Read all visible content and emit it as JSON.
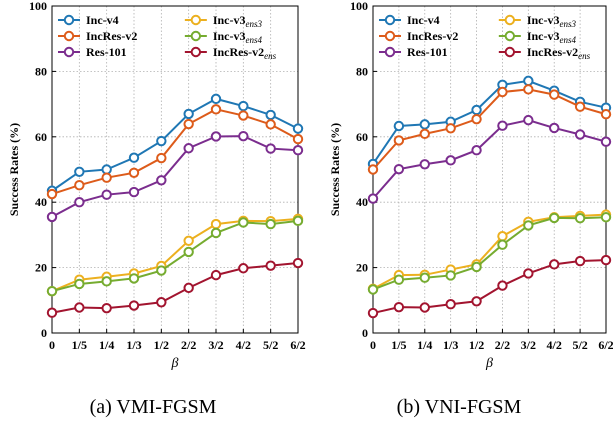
{
  "chart_data": [
    {
      "type": "line",
      "caption": "(a) VMI-FGSM",
      "xlabel": "β",
      "ylabel": "Success Rates (%)",
      "ylim": [
        0,
        100
      ],
      "yticks": [
        0,
        20,
        40,
        60,
        80,
        100
      ],
      "grid": true,
      "legend_position": "top",
      "categories": [
        "0",
        "1/5",
        "1/4",
        "1/3",
        "1/2",
        "2/2",
        "3/2",
        "4/2",
        "5/2",
        "6/2"
      ],
      "series": [
        {
          "name": "Inc-v4",
          "sub": "",
          "color": "#1f77b4",
          "values": [
            43.5,
            49.3,
            50.0,
            53.6,
            58.7,
            67.0,
            71.6,
            69.4,
            66.7,
            62.5
          ]
        },
        {
          "name": "IncRes-v2",
          "sub": "",
          "color": "#dd5b1a",
          "values": [
            42.5,
            45.2,
            47.5,
            49.0,
            53.5,
            63.9,
            68.4,
            66.5,
            63.8,
            59.3
          ]
        },
        {
          "name": "Res-101",
          "sub": "",
          "color": "#7b2d8e",
          "values": [
            35.5,
            40.0,
            42.3,
            43.1,
            46.7,
            56.5,
            60.1,
            60.2,
            56.4,
            55.9
          ]
        },
        {
          "name": "Inc-v3",
          "sub": "ens3",
          "color": "#ecb01f",
          "values": [
            12.8,
            16.3,
            17.2,
            18.2,
            20.5,
            28.2,
            33.3,
            34.3,
            34.2,
            34.9
          ]
        },
        {
          "name": "Inc-v3",
          "sub": "ens4",
          "color": "#76ac30",
          "values": [
            12.8,
            15.0,
            15.8,
            16.7,
            19.1,
            24.8,
            30.6,
            33.8,
            33.3,
            34.3
          ]
        },
        {
          "name": "IncRes-v2",
          "sub": "ens",
          "color": "#a2142f",
          "values": [
            6.2,
            7.8,
            7.6,
            8.4,
            9.4,
            13.8,
            17.7,
            19.8,
            20.6,
            21.4
          ]
        }
      ]
    },
    {
      "type": "line",
      "caption": "(b) VNI-FGSM",
      "xlabel": "β",
      "ylabel": "Success Rates (%)",
      "ylim": [
        0,
        100
      ],
      "yticks": [
        0,
        20,
        40,
        60,
        80,
        100
      ],
      "grid": true,
      "legend_position": "top",
      "categories": [
        "0",
        "1/5",
        "1/4",
        "1/3",
        "1/2",
        "2/2",
        "3/2",
        "4/2",
        "5/2",
        "6/2"
      ],
      "series": [
        {
          "name": "Inc-v4",
          "sub": "",
          "color": "#1f77b4",
          "values": [
            51.7,
            63.3,
            63.8,
            64.6,
            68.2,
            75.9,
            77.1,
            74.1,
            70.7,
            68.9
          ]
        },
        {
          "name": "IncRes-v2",
          "sub": "",
          "color": "#dd5b1a",
          "values": [
            50.0,
            58.9,
            60.9,
            62.6,
            65.4,
            73.7,
            74.5,
            72.9,
            69.2,
            66.9
          ]
        },
        {
          "name": "Res-101",
          "sub": "",
          "color": "#7b2d8e",
          "values": [
            41.1,
            50.1,
            51.6,
            52.8,
            55.9,
            63.4,
            65.1,
            62.7,
            60.7,
            58.5
          ]
        },
        {
          "name": "Inc-v3",
          "sub": "ens3",
          "color": "#ecb01f",
          "values": [
            13.5,
            17.7,
            17.8,
            19.4,
            21.0,
            29.6,
            34.0,
            35.4,
            35.8,
            36.2
          ]
        },
        {
          "name": "Inc-v3",
          "sub": "ens4",
          "color": "#76ac30",
          "values": [
            13.3,
            16.3,
            16.9,
            17.6,
            20.2,
            27.0,
            32.9,
            35.2,
            35.1,
            35.4
          ]
        },
        {
          "name": "IncRes-v2",
          "sub": "ens",
          "color": "#a2142f",
          "values": [
            6.1,
            7.9,
            7.8,
            8.8,
            9.7,
            14.5,
            18.2,
            21.0,
            22.0,
            22.3
          ]
        }
      ]
    }
  ]
}
